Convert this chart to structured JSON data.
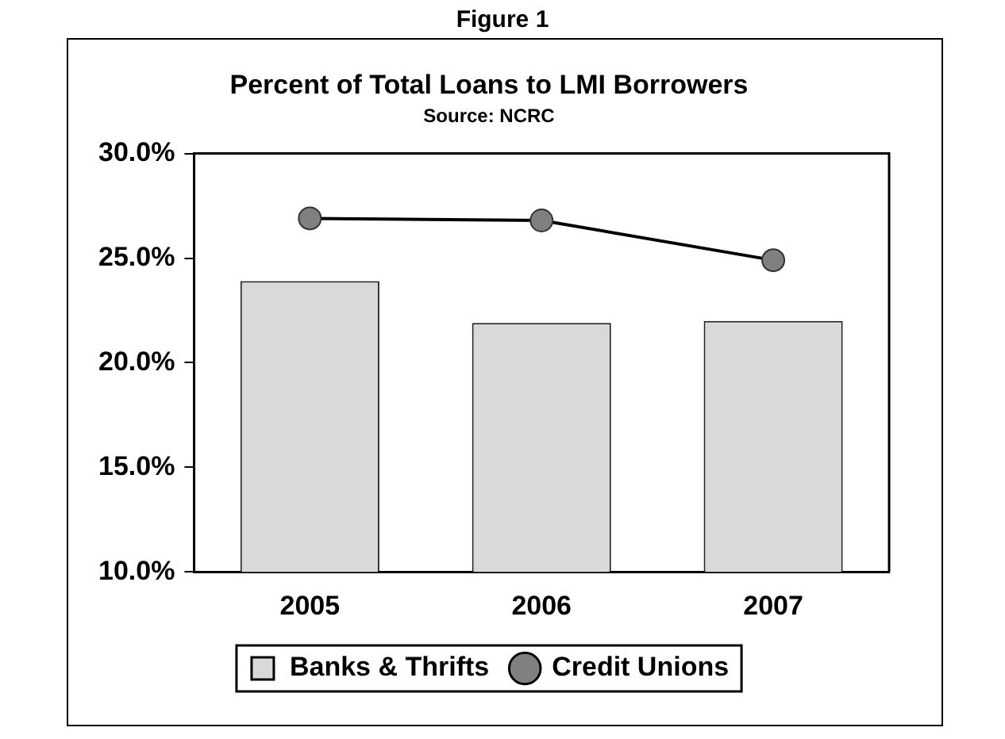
{
  "chart_data": {
    "type": "bar",
    "title": "Percent of Total Loans to LMI Borrowers",
    "subtitle": "Source: NCRC",
    "annotations": [
      "Figure 1"
    ],
    "categories": [
      "2005",
      "2006",
      "2007"
    ],
    "series": [
      {
        "name": "Banks & Thrifts",
        "color": "#d9d9d9",
        "values": [
          23.9,
          21.9,
          22.0
        ]
      },
      {
        "name": "Credit Unions",
        "type": "line",
        "color": "#808080",
        "values": [
          26.9,
          26.8,
          24.9
        ]
      }
    ],
    "ylim": [
      10,
      30
    ],
    "yticks": [
      {
        "value": 10,
        "label": "10.0%"
      },
      {
        "value": 15,
        "label": "15.0%"
      },
      {
        "value": 20,
        "label": "20.0%"
      },
      {
        "value": 25,
        "label": "25.0%"
      },
      {
        "value": 30,
        "label": "30.0%"
      }
    ],
    "grid": false,
    "legend": "bottom",
    "marker": "circle",
    "line_style": "solid"
  }
}
